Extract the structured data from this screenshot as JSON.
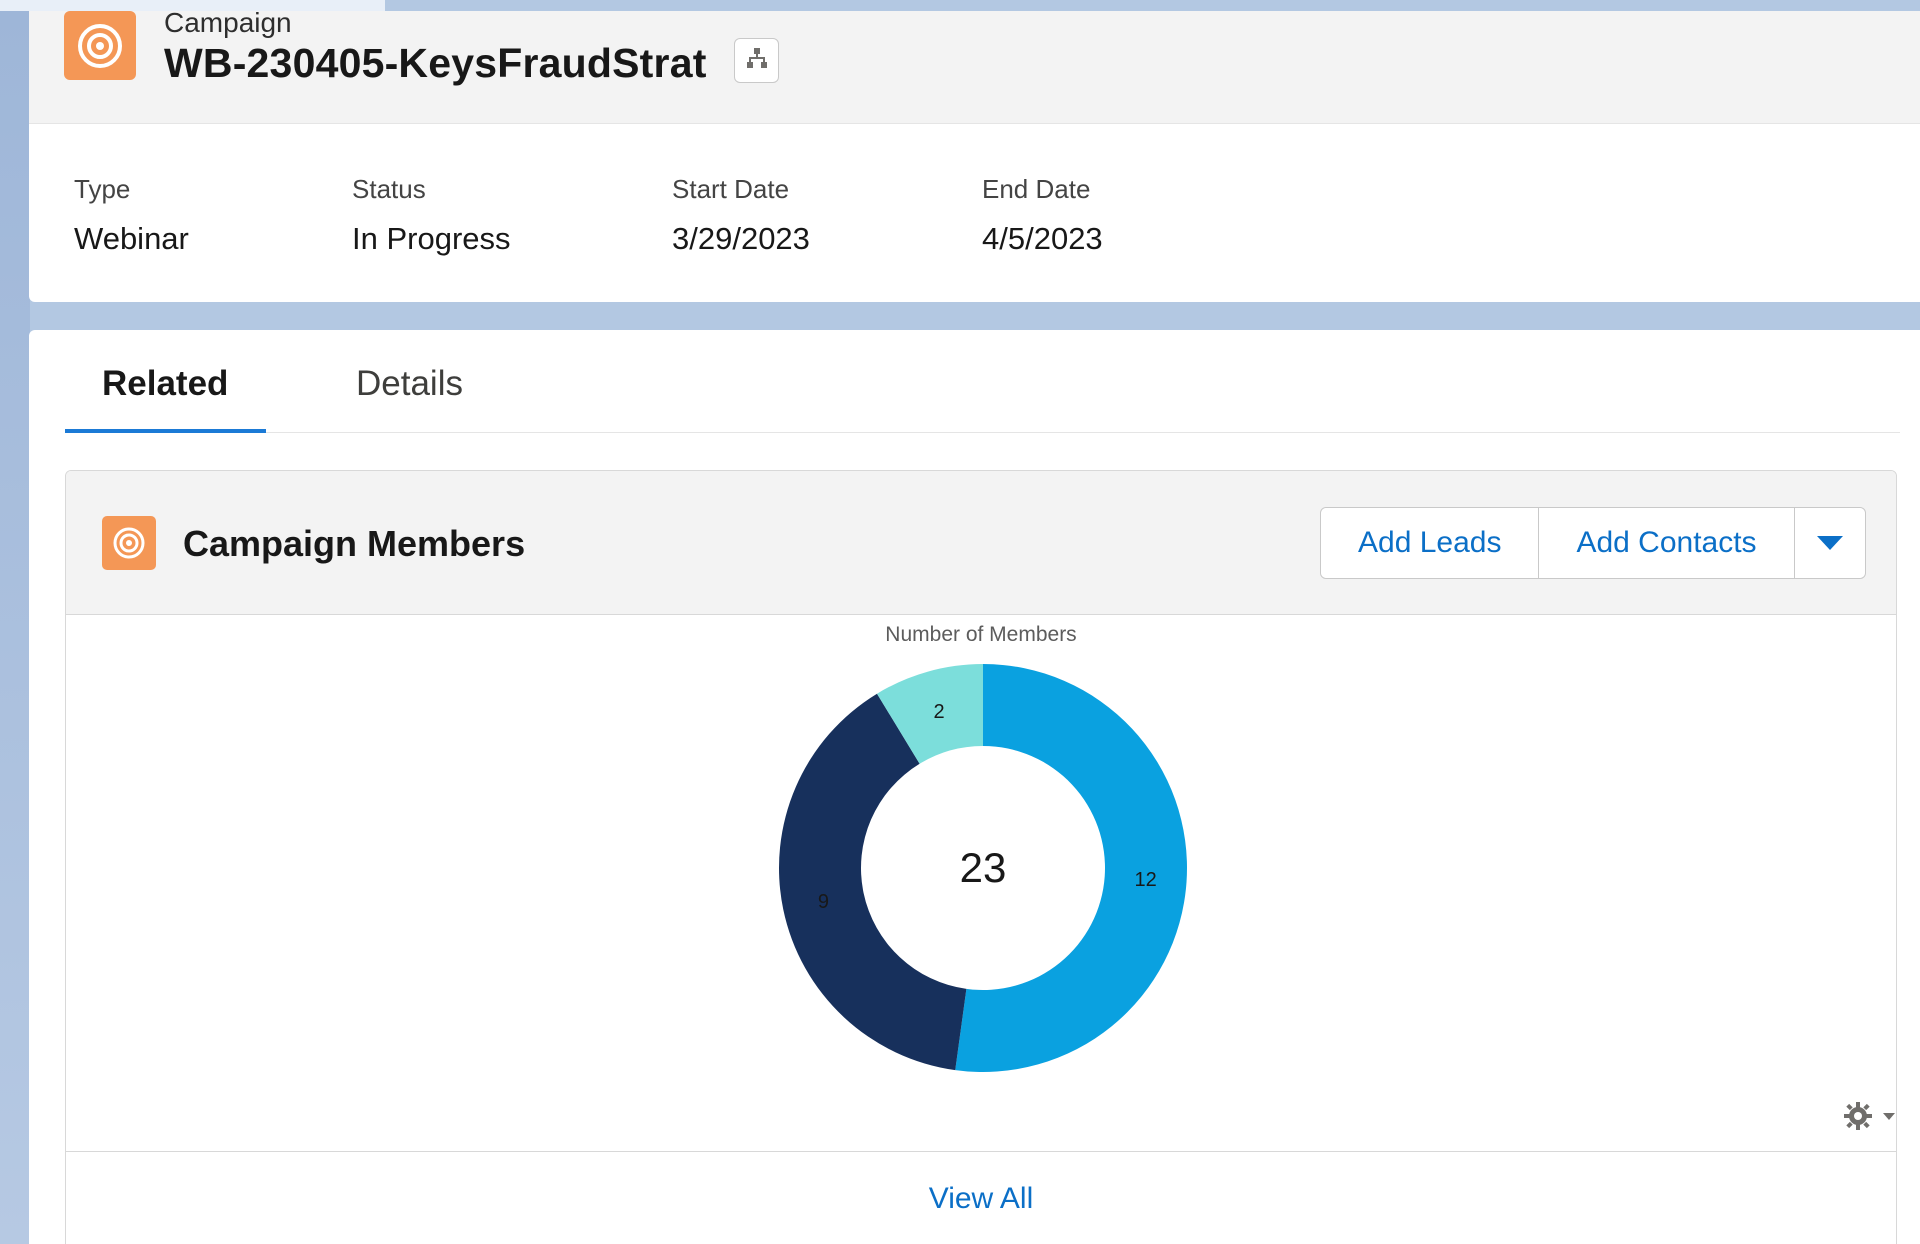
{
  "header": {
    "object_label": "Campaign",
    "record_title": "WB-230405-KeysFraudStrat",
    "hierarchy_icon": "hierarchy-icon",
    "record_icon": "campaign-target-icon"
  },
  "highlights": {
    "fields": [
      {
        "label": "Type",
        "value": "Webinar"
      },
      {
        "label": "Status",
        "value": "In Progress"
      },
      {
        "label": "Start Date",
        "value": "3/29/2023"
      },
      {
        "label": "End Date",
        "value": "4/5/2023"
      }
    ]
  },
  "tabs": [
    {
      "label": "Related",
      "active": true
    },
    {
      "label": "Details",
      "active": false
    }
  ],
  "related_list": {
    "title": "Campaign Members",
    "icon": "campaign-target-icon",
    "buttons": {
      "add_leads": "Add Leads",
      "add_contacts": "Add Contacts",
      "more_icon": "chevron-down-icon"
    },
    "footer_link": "View All",
    "settings_icon": "gear-icon"
  },
  "colors": {
    "accent_orange": "#f49756",
    "link_blue": "#0b6fc7",
    "tab_active": "#1b7ad6",
    "slice_light_blue": "#0aa1e0",
    "slice_navy": "#17305c",
    "slice_teal": "#7cdedb"
  },
  "chart_data": {
    "type": "pie",
    "variant": "donut",
    "title": "Number of Members",
    "total": 23,
    "slices": [
      {
        "value": 12,
        "color": "#0aa1e0"
      },
      {
        "value": 9,
        "color": "#17305c"
      },
      {
        "value": 2,
        "color": "#7cdedb"
      }
    ]
  }
}
